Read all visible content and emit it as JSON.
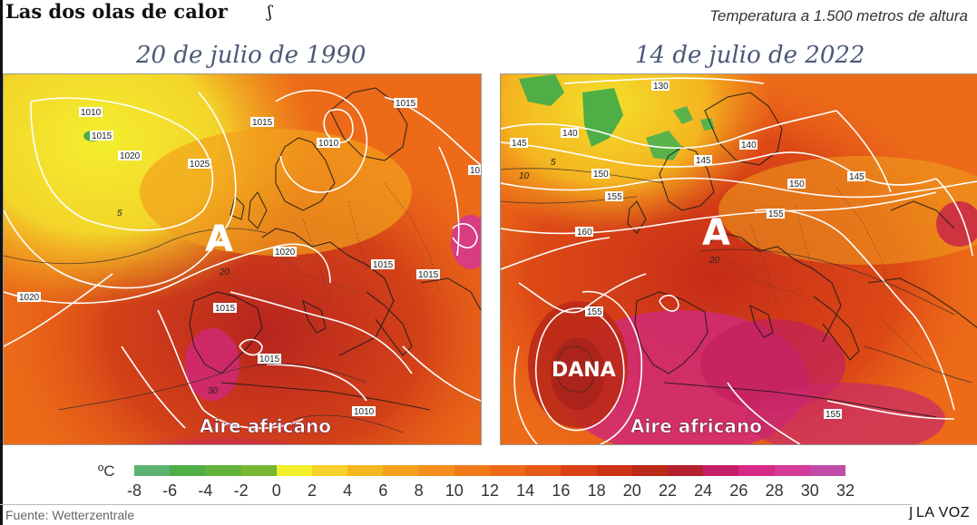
{
  "header": {
    "title": "Las dos olas de calor",
    "subtitle": "Temperatura a 1.500 metros de altura"
  },
  "maps": [
    {
      "date": "20 de julio de 1990",
      "high_label": "A",
      "air_label": "Aire africano",
      "isobars": [
        "1010",
        "1015",
        "1020",
        "1025",
        "1015",
        "1010",
        "1015",
        "1015",
        "1020",
        "1015",
        "1020",
        "1015",
        "1015",
        "1010",
        "10"
      ],
      "temps": [
        "5",
        "20",
        "30"
      ]
    },
    {
      "date": "14 de julio de 2022",
      "high_label": "A",
      "low_label": "DANA",
      "air_label": "Aire africano",
      "isobars": [
        "130",
        "140",
        "145",
        "140",
        "145",
        "145",
        "150",
        "150",
        "155",
        "155",
        "160",
        "155",
        "155"
      ],
      "temps": [
        "5",
        "10",
        "20"
      ]
    }
  ],
  "legend": {
    "unit": "ºC",
    "ticks": [
      "-8",
      "-6",
      "-4",
      "-2",
      "0",
      "2",
      "4",
      "6",
      "8",
      "10",
      "12",
      "14",
      "16",
      "18",
      "20",
      "22",
      "24",
      "26",
      "28",
      "30",
      "32"
    ],
    "colors": [
      "#5cb371",
      "#4fae45",
      "#62b33c",
      "#78b833",
      "#f2ee2a",
      "#f6d12a",
      "#f5b71f",
      "#f4a01d",
      "#f38d1c",
      "#f07a1a",
      "#ec6a18",
      "#e65a17",
      "#d94016",
      "#cc3216",
      "#bb2a18",
      "#b4202e",
      "#c41f66",
      "#d62a87",
      "#d63a99",
      "#c04ba8"
    ]
  },
  "footer": {
    "source": "Fuente: Wetterzentrale",
    "brand": "LA VOZ"
  }
}
